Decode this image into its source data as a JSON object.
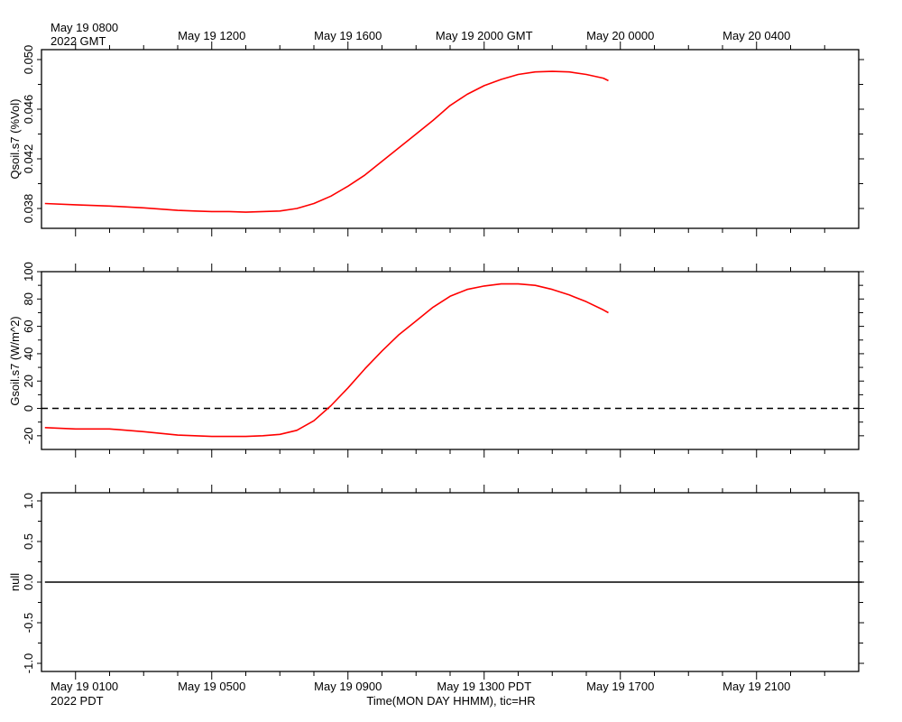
{
  "chart_data": [
    {
      "type": "line",
      "ylabel": "Qsoil.s7 (%Vol)",
      "ylim": [
        0.0364,
        0.0508
      ],
      "yticks": [
        "0.038",
        "0.042",
        "0.046",
        "0.050"
      ],
      "grid": false,
      "series": [
        {
          "color": "#ff0000",
          "x": [
            -0.9,
            0,
            1,
            2,
            3,
            3.5,
            4,
            4.5,
            5,
            5.5,
            6,
            6.5,
            7,
            7.5,
            8,
            8.5,
            9,
            9.5,
            10,
            10.5,
            11,
            11.5,
            12,
            12.5,
            13,
            13.5,
            14,
            14.5,
            15,
            15.5,
            15.65
          ],
          "y": [
            0.0384,
            0.0383,
            0.0382,
            0.03805,
            0.03785,
            0.0378,
            0.03775,
            0.03775,
            0.0377,
            0.03775,
            0.0378,
            0.038,
            0.0384,
            0.039,
            0.0398,
            0.0407,
            0.0418,
            0.0429,
            0.044,
            0.0451,
            0.0463,
            0.0472,
            0.0479,
            0.0484,
            0.0488,
            0.049,
            0.04905,
            0.049,
            0.0488,
            0.0485,
            0.0483
          ]
        }
      ]
    },
    {
      "type": "line",
      "ylabel": "Gsoil.s7 (W/m^2)",
      "ylim": [
        -30,
        100
      ],
      "yticks": [
        "-20",
        "0",
        "20",
        "40",
        "60",
        "80",
        "100"
      ],
      "grid": false,
      "reference_line": {
        "y": 0,
        "style": "dashed",
        "color": "#000000"
      },
      "series": [
        {
          "color": "#ff0000",
          "x": [
            -0.9,
            0,
            1,
            2,
            3,
            3.5,
            4,
            4.5,
            5,
            5.5,
            6,
            6.5,
            7,
            7.5,
            8,
            8.5,
            9,
            9.5,
            10,
            10.5,
            11,
            11.5,
            12,
            12.5,
            13,
            13.5,
            14,
            14.5,
            15,
            15.5,
            15.65
          ],
          "y": [
            -14,
            -15,
            -15,
            -17,
            -19.5,
            -20,
            -20.5,
            -20.5,
            -20.5,
            -20,
            -19,
            -16,
            -9,
            2,
            15,
            29,
            42,
            54,
            64,
            74,
            82,
            87,
            89.5,
            91,
            91,
            90,
            87,
            83,
            78,
            72,
            70
          ]
        }
      ]
    },
    {
      "type": "line",
      "ylabel": "null",
      "ylim": [
        -1.1,
        1.1
      ],
      "yticks": [
        "-1.0",
        "-0.5",
        "0.0",
        "0.5",
        "1.0"
      ],
      "grid": false,
      "series": [
        {
          "color": "#000000",
          "x": [
            -0.9,
            23.1
          ],
          "y": [
            0,
            0
          ]
        }
      ]
    }
  ],
  "axes": {
    "x_range_hours_from_may19_0100_pdt": [
      -1,
      23
    ],
    "top_axis": {
      "corner_label_line1": "May 19 0800",
      "corner_label_line2": "2022 GMT",
      "tick_labels": [
        "May 19 1200",
        "May 19 1600",
        "May 19 2000 GMT",
        "May 20 0000",
        "May 20 0400"
      ],
      "tick_hours": [
        4,
        8,
        12,
        16,
        20
      ]
    },
    "bottom_axis": {
      "tick_labels": [
        "May 19 0100",
        "May 19 0500",
        "May 19 0900",
        "May 19 1300 PDT",
        "May 19 1700",
        "May 19 2100"
      ],
      "tick_hours": [
        0,
        4,
        8,
        12,
        16,
        20
      ],
      "corner_label": "2022 PDT",
      "title": "Time(MON DAY HHMM), tic=HR"
    }
  }
}
